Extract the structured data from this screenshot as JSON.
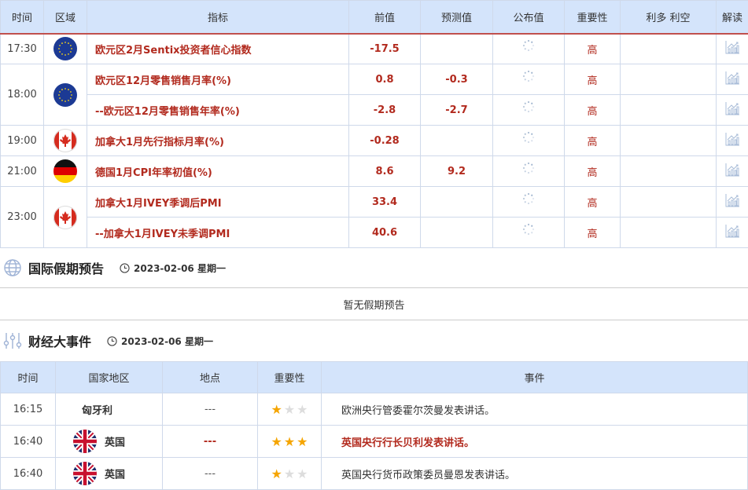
{
  "calendar": {
    "headers": [
      "时间",
      "区域",
      "指标",
      "前值",
      "预测值",
      "公布值",
      "重要性",
      "利多 利空",
      "解读"
    ],
    "groups": [
      {
        "time": "17:30",
        "flag": "eu",
        "items": [
          {
            "indicator": "欧元区2月Sentix投资者信心指数",
            "prev": "-17.5",
            "forecast": "",
            "importance": "高"
          }
        ]
      },
      {
        "time": "18:00",
        "flag": "eu",
        "items": [
          {
            "indicator": "欧元区12月零售销售月率(%)",
            "prev": "0.8",
            "forecast": "-0.3",
            "importance": "高"
          },
          {
            "indicator": "--欧元区12月零售销售年率(%)",
            "prev": "-2.8",
            "forecast": "-2.7",
            "importance": "高"
          }
        ]
      },
      {
        "time": "19:00",
        "flag": "ca",
        "items": [
          {
            "indicator": "加拿大1月先行指标月率(%)",
            "prev": "-0.28",
            "forecast": "",
            "importance": "高"
          }
        ]
      },
      {
        "time": "21:00",
        "flag": "de",
        "items": [
          {
            "indicator": "德国1月CPI年率初值(%)",
            "prev": "8.6",
            "forecast": "9.2",
            "importance": "高"
          }
        ]
      },
      {
        "time": "23:00",
        "flag": "ca",
        "items": [
          {
            "indicator": "加拿大1月IVEY季调后PMI",
            "prev": "33.4",
            "forecast": "",
            "importance": "高"
          },
          {
            "indicator": "--加拿大1月IVEY未季调PMI",
            "prev": "40.6",
            "forecast": "",
            "importance": "高"
          }
        ]
      }
    ]
  },
  "holidays": {
    "title": "国际假期预告",
    "date": "2023-02-06 星期一",
    "empty": "暂无假期预告"
  },
  "events": {
    "title": "财经大事件",
    "date": "2023-02-06 星期一",
    "headers": [
      "时间",
      "国家地区",
      "地点",
      "重要性",
      "事件"
    ],
    "rows": [
      {
        "time": "16:15",
        "flag": "",
        "country": "匈牙利",
        "place": "---",
        "stars": 1,
        "event": "欧洲央行管委霍尔茨曼发表讲话。",
        "highlight": false
      },
      {
        "time": "16:40",
        "flag": "gb",
        "country": "英国",
        "place": "---",
        "stars": 3,
        "event": "英国央行行长贝利发表讲话。",
        "highlight": true
      },
      {
        "time": "16:40",
        "flag": "gb",
        "country": "英国",
        "place": "---",
        "stars": 1,
        "event": "英国央行货币政策委员曼恩发表讲话。",
        "highlight": false
      }
    ]
  },
  "colors": {
    "accent": "#b22a1e",
    "header_bg": "#d4e4fb",
    "star": "#f5a500"
  }
}
